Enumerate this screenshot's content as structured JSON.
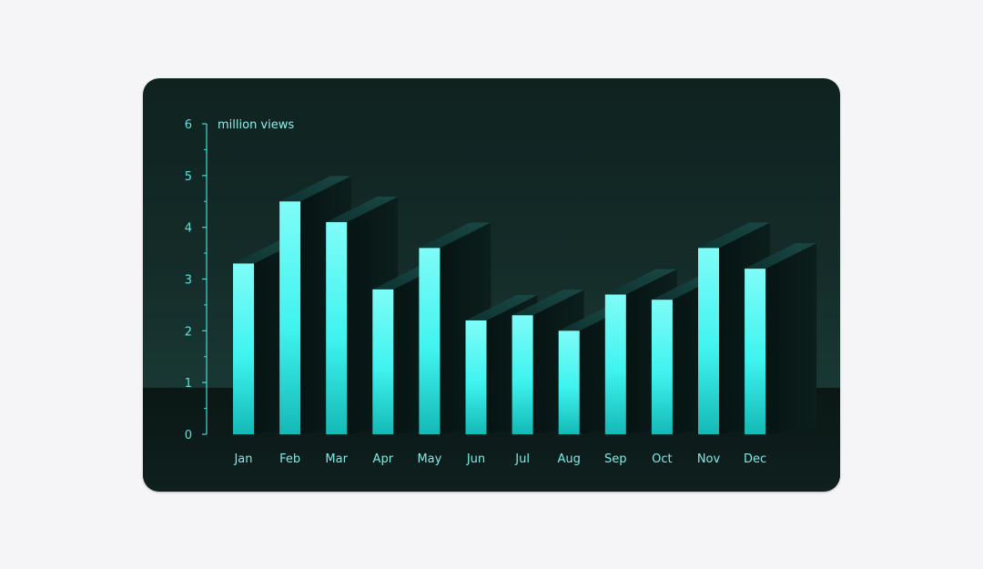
{
  "chart_data": {
    "type": "bar",
    "ylabel": "million views",
    "categories": [
      "Jan",
      "Feb",
      "Mar",
      "Apr",
      "May",
      "Jun",
      "Jul",
      "Aug",
      "Sep",
      "Oct",
      "Nov",
      "Dec"
    ],
    "values": [
      3.3,
      4.5,
      4.1,
      2.8,
      3.6,
      2.2,
      2.3,
      2.0,
      2.7,
      2.6,
      3.6,
      3.2
    ],
    "ylim": [
      0,
      6
    ],
    "yticks": [
      "0",
      "1",
      "2",
      "3",
      "4",
      "5",
      "6"
    ],
    "grid": false,
    "colors": {
      "bar_top": "#7ffcf8",
      "bar_mid": "#3ff3ef",
      "bar_bottom": "#16bdbb",
      "axis": "#4fd6d2"
    }
  }
}
